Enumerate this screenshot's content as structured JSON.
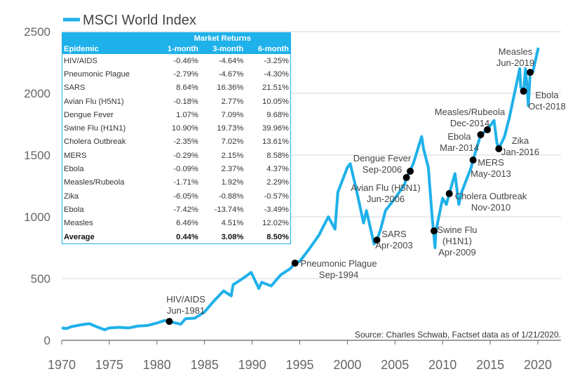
{
  "chart_data": {
    "type": "line",
    "title": "",
    "xlabel": "",
    "ylabel": "",
    "xlim": [
      1970,
      2022
    ],
    "ylim": [
      0,
      2500
    ],
    "xticks": [
      1970,
      1975,
      1980,
      1985,
      1990,
      1995,
      2000,
      2005,
      2010,
      2015,
      2020
    ],
    "yticks": [
      0,
      500,
      1000,
      1500,
      2000,
      2500
    ],
    "grid": "horizontal",
    "legend": "top-left",
    "colors": {
      "line": "#1fb1ea",
      "marker": "#000000",
      "grid": "#d0d4d8",
      "table_header": "#1fb1ea"
    },
    "series": [
      {
        "name": "MSCI World Index",
        "x": [
          1970,
          1970.5,
          1971,
          1972,
          1972.9,
          1973.5,
          1974.5,
          1975,
          1976,
          1977,
          1978,
          1979,
          1980,
          1980.8,
          1981.3,
          1982.5,
          1983,
          1984,
          1985,
          1986,
          1987,
          1987.8,
          1988,
          1989,
          1989.9,
          1990.7,
          1991,
          1992,
          1993,
          1994,
          1994.5,
          1995,
          1996,
          1997,
          1998,
          1998.7,
          1999,
          2000,
          2000.3,
          2001,
          2001.7,
          2002,
          2002.8,
          2003.1,
          2003.5,
          2004,
          2005,
          2006,
          2006.2,
          2006.6,
          2007,
          2007.8,
          2008,
          2008.5,
          2008.9,
          2009.2,
          2009.3,
          2010,
          2010.4,
          2010.7,
          2011.3,
          2011.7,
          2012,
          2013,
          2013.2,
          2014,
          2014.7,
          2015.4,
          2015.7,
          2015.9,
          2016.5,
          2017,
          2018.1,
          2018.2,
          2018.5,
          2018.7,
          2018.9,
          2019,
          2019.2,
          2019.5,
          2020.05
        ],
        "y": [
          100,
          95,
          110,
          125,
          135,
          115,
          85,
          100,
          105,
          100,
          115,
          120,
          140,
          160,
          153,
          130,
          175,
          180,
          230,
          320,
          400,
          360,
          450,
          500,
          550,
          420,
          470,
          440,
          530,
          580,
          625,
          640,
          740,
          850,
          1000,
          900,
          1200,
          1400,
          1430,
          1200,
          950,
          1050,
          780,
          812,
          900,
          1050,
          1150,
          1260,
          1318,
          1369,
          1450,
          1650,
          1550,
          1400,
          1000,
          750,
          886,
          1150,
          1100,
          1188,
          1350,
          1100,
          1200,
          1400,
          1460,
          1665,
          1705,
          1780,
          1600,
          1551,
          1650,
          1800,
          2200,
          2050,
          2017,
          2200,
          2020,
          1900,
          2170,
          2180,
          2370
        ]
      }
    ],
    "annotations": [
      {
        "lines": [
          "HIV/AIDS",
          "Jun-1981"
        ],
        "x": 1981.3,
        "y": 153
      },
      {
        "lines": [
          "Pneumonic Plague",
          "Sep-1994"
        ],
        "x": 1994.5,
        "y": 625
      },
      {
        "lines": [
          "SARS",
          "Apr-2003"
        ],
        "x": 2003.1,
        "y": 812
      },
      {
        "lines": [
          "Avian Flu (H5N1)",
          "Jun-2006"
        ],
        "x": 2006.2,
        "y": 1318
      },
      {
        "lines": [
          "Dengue Fever",
          "Sep-2006"
        ],
        "x": 2006.6,
        "y": 1369
      },
      {
        "lines": [
          "Swine Flu",
          "(H1N1)",
          "Apr-2009"
        ],
        "x": 2009.1,
        "y": 886
      },
      {
        "lines": [
          "Cholera Outbreak",
          "Nov-2010"
        ],
        "x": 2010.7,
        "y": 1188
      },
      {
        "lines": [
          "MERS",
          "May-2013"
        ],
        "x": 2013.2,
        "y": 1460
      },
      {
        "lines": [
          "Ebola",
          "Mar-2014"
        ],
        "x": 2014.0,
        "y": 1665
      },
      {
        "lines": [
          "Measles/Rubeola",
          "Dec-2014"
        ],
        "x": 2014.7,
        "y": 1705
      },
      {
        "lines": [
          "Zika",
          "Jan-2016"
        ],
        "x": 2015.9,
        "y": 1551
      },
      {
        "lines": [
          "Ebola",
          "Oct-2018"
        ],
        "x": 2018.5,
        "y": 2017
      },
      {
        "lines": [
          "Measles",
          "Jun-2019"
        ],
        "x": 2019.2,
        "y": 2170
      }
    ],
    "source": "Source: Charles Schwab, Factset data as of 1/21/2020.",
    "table": {
      "group_header": "Market Returns",
      "headers": [
        "Epidemic",
        "1-month",
        "3-month",
        "6-month"
      ],
      "rows": [
        [
          "HIV/AIDS",
          "-0.46%",
          "-4.64%",
          "-3.25%"
        ],
        [
          "Pneumonic Plague",
          "-2.79%",
          "-4.67%",
          "-4.30%"
        ],
        [
          "SARS",
          "8.64%",
          "16.36%",
          "21.51%"
        ],
        [
          "Avian Flu (H5N1)",
          "-0.18%",
          "2.77%",
          "10.05%"
        ],
        [
          "Dengue Fever",
          "1.07%",
          "7.09%",
          "9.68%"
        ],
        [
          "Swine Flu (H1N1)",
          "10.90%",
          "19.73%",
          "39.96%"
        ],
        [
          "Cholera Outbreak",
          "-2.35%",
          "7.02%",
          "13.61%"
        ],
        [
          "MERS",
          "-0.29%",
          "2.15%",
          "8.58%"
        ],
        [
          "Ebola",
          "-0.09%",
          "2.37%",
          "4.37%"
        ],
        [
          "Measles/Rubeola",
          "-1.71%",
          "1.92%",
          "2.29%"
        ],
        [
          "Zika",
          "-6.05%",
          "-0.88%",
          "-0.57%"
        ],
        [
          "Ebola",
          "-7.42%",
          "-13.74%",
          "-3.49%"
        ],
        [
          "Measles",
          "6.46%",
          "4.51%",
          "12.02%"
        ]
      ],
      "average": [
        "Average",
        "0.44%",
        "3.08%",
        "8.50%"
      ]
    }
  }
}
